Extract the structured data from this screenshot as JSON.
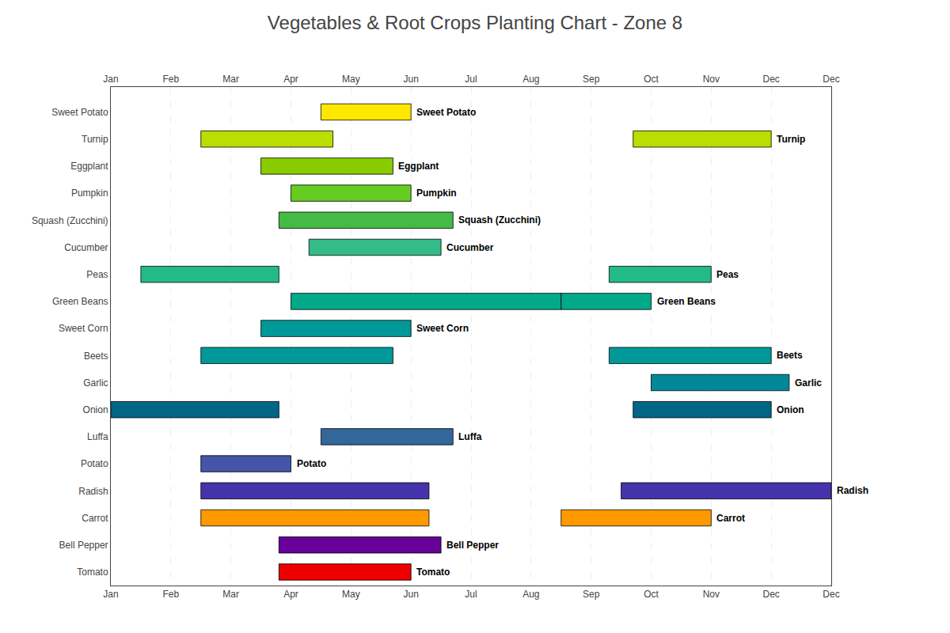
{
  "chart_data": {
    "type": "bar",
    "orientation": "horizontal",
    "title": "Vegetables & Root Crops Planting Chart - Zone 8",
    "categories": [
      "Sweet Potato",
      "Turnip",
      "Eggplant",
      "Pumpkin",
      "Squash (Zucchini)",
      "Cucumber",
      "Peas",
      "Green Beans",
      "Sweet Corn",
      "Beets",
      "Garlic",
      "Onion",
      "Luffa",
      "Potato",
      "Radish",
      "Carrot",
      "Bell Pepper",
      "Tomato"
    ],
    "segments": [
      [
        {
          "start": 3.5,
          "end": 5.0,
          "color": "#FFE800"
        }
      ],
      [
        {
          "start": 1.5,
          "end": 3.7,
          "color": "#BBDD00"
        },
        {
          "start": 8.7,
          "end": 11.0,
          "color": "#BBDD00"
        }
      ],
      [
        {
          "start": 2.5,
          "end": 4.7,
          "color": "#88CC00"
        }
      ],
      [
        {
          "start": 3.0,
          "end": 5.0,
          "color": "#66CC22"
        }
      ],
      [
        {
          "start": 2.8,
          "end": 5.7,
          "color": "#44BB44"
        }
      ],
      [
        {
          "start": 3.3,
          "end": 5.5,
          "color": "#33BB88"
        }
      ],
      [
        {
          "start": 0.5,
          "end": 2.8,
          "color": "#22BB88"
        },
        {
          "start": 8.3,
          "end": 10.0,
          "color": "#22BB88"
        }
      ],
      [
        {
          "start": 3.0,
          "end": 7.5,
          "color": "#00AA88"
        },
        {
          "start": 7.5,
          "end": 9.0,
          "color": "#00AA88"
        }
      ],
      [
        {
          "start": 2.5,
          "end": 5.0,
          "color": "#009999"
        }
      ],
      [
        {
          "start": 1.5,
          "end": 4.7,
          "color": "#009999"
        },
        {
          "start": 8.3,
          "end": 11.0,
          "color": "#009999"
        }
      ],
      [
        {
          "start": 9.0,
          "end": 11.3,
          "color": "#008899"
        }
      ],
      [
        {
          "start": 0.0,
          "end": 2.8,
          "color": "#006688"
        },
        {
          "start": 8.7,
          "end": 11.0,
          "color": "#006688"
        }
      ],
      [
        {
          "start": 3.5,
          "end": 5.7,
          "color": "#336699"
        }
      ],
      [
        {
          "start": 1.5,
          "end": 3.0,
          "color": "#4455AA"
        }
      ],
      [
        {
          "start": 1.5,
          "end": 5.3,
          "color": "#4433AA"
        },
        {
          "start": 8.5,
          "end": 12.0,
          "color": "#4433AA"
        }
      ],
      [
        {
          "start": 1.5,
          "end": 5.3,
          "color": "#FF9900"
        },
        {
          "start": 7.5,
          "end": 10.0,
          "color": "#FF9900"
        }
      ],
      [
        {
          "start": 2.8,
          "end": 5.5,
          "color": "#660099"
        }
      ],
      [
        {
          "start": 2.8,
          "end": 5.0,
          "color": "#EE0000"
        }
      ]
    ],
    "annotations": [
      "Sweet Potato",
      "Turnip",
      "Eggplant",
      "Pumpkin",
      "Squash (Zucchini)",
      "Cucumber",
      "Peas",
      "Green Beans",
      "Sweet Corn",
      "Beets",
      "Garlic",
      "Onion",
      "Luffa",
      "Potato",
      "Radish",
      "Carrot",
      "Bell Pepper",
      "Tomato"
    ],
    "xlim": [
      0,
      12
    ],
    "xticks": [
      {
        "value": 0,
        "label": "Jan"
      },
      {
        "value": 1,
        "label": "Feb"
      },
      {
        "value": 2,
        "label": "Mar"
      },
      {
        "value": 3,
        "label": "Apr"
      },
      {
        "value": 4,
        "label": "May"
      },
      {
        "value": 5,
        "label": "Jun"
      },
      {
        "value": 6,
        "label": "Jul"
      },
      {
        "value": 7,
        "label": "Aug"
      },
      {
        "value": 8,
        "label": "Sep"
      },
      {
        "value": 9,
        "label": "Oct"
      },
      {
        "value": 10,
        "label": "Nov"
      },
      {
        "value": 11,
        "label": "Dec"
      },
      {
        "value": 12,
        "label": "Dec"
      }
    ],
    "grid": true
  }
}
